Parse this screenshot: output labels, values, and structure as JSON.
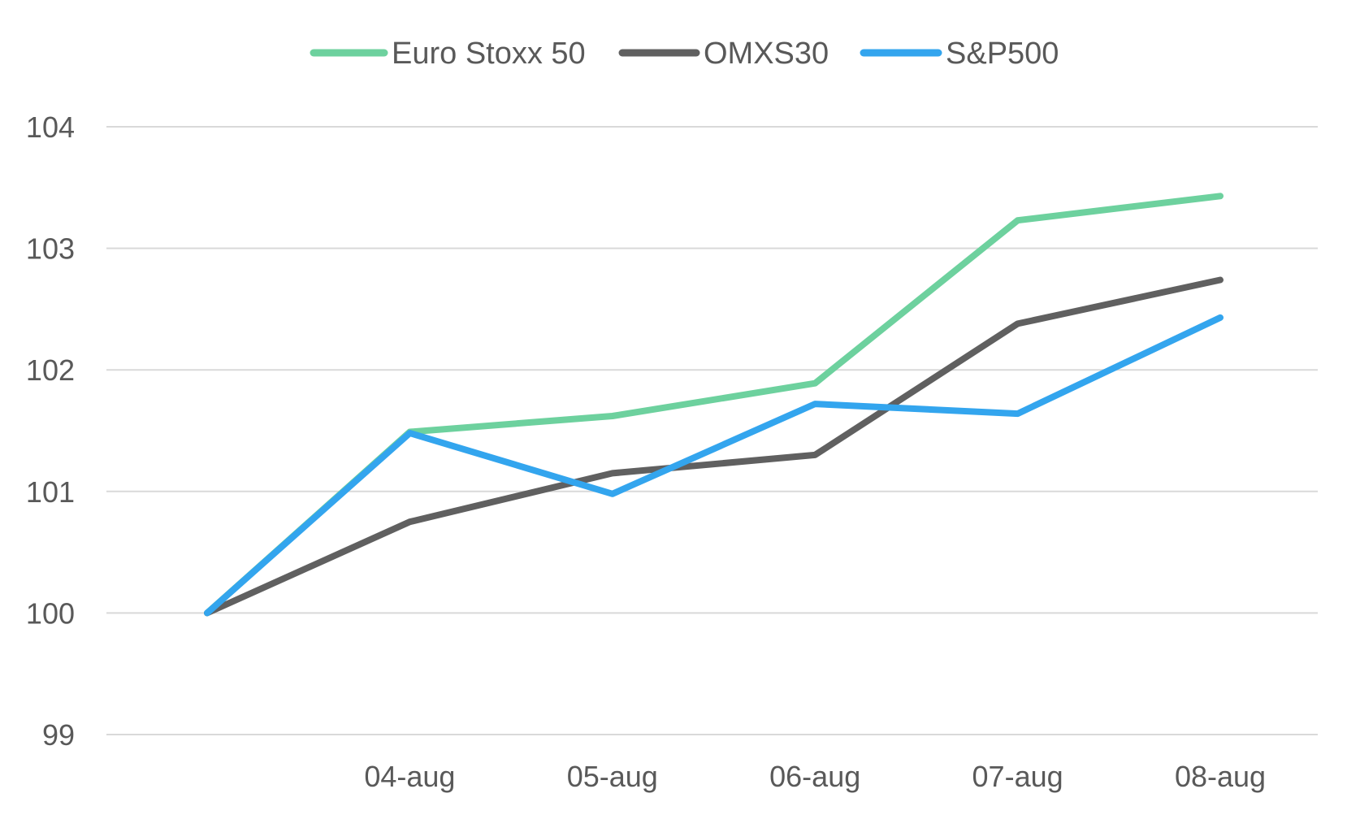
{
  "chart_data": {
    "type": "line",
    "title": "",
    "xlabel": "",
    "ylabel": "",
    "categories": [
      "",
      "04-aug",
      "05-aug",
      "06-aug",
      "07-aug",
      "08-aug"
    ],
    "ylim": [
      99,
      104
    ],
    "yticks": [
      99,
      100,
      101,
      102,
      103,
      104
    ],
    "grid": true,
    "legend_position": "top",
    "series": [
      {
        "name": "Euro Stoxx 50",
        "color": "#6DD19E",
        "values": [
          100,
          101.49,
          101.62,
          101.89,
          103.23,
          103.43
        ]
      },
      {
        "name": "OMXS30",
        "color": "#606060",
        "values": [
          100,
          100.75,
          101.15,
          101.3,
          102.38,
          102.74
        ]
      },
      {
        "name": "S&P500",
        "color": "#33A5EE",
        "values": [
          100,
          101.48,
          100.98,
          101.72,
          101.64,
          102.43
        ]
      }
    ]
  }
}
